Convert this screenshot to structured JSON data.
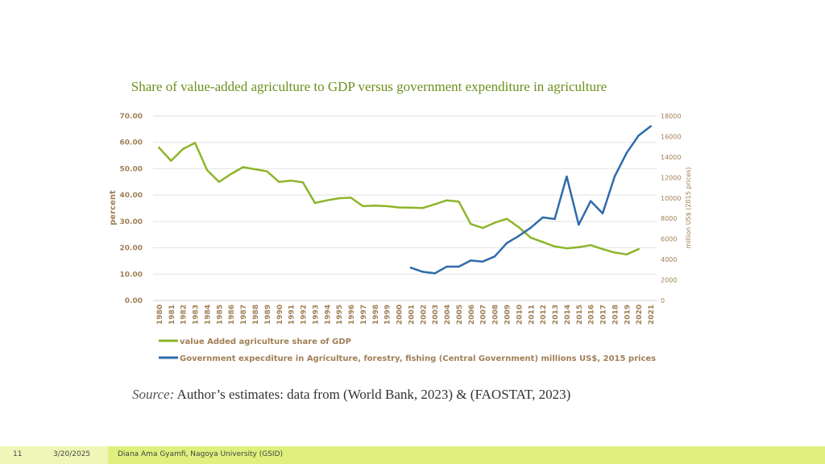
{
  "slide": {
    "title": "Share of value-added agriculture to GDP versus government expenditure in agriculture",
    "source_label": "Source:",
    "source_text": " Author’s estimates: data from (World Bank, 2023) & (FAOSTAT, 2023)",
    "footer": {
      "page_number": "11",
      "date": "3/20/2025",
      "author": "Diana Ama Gyamfi, Nagoya University (GSID)"
    }
  },
  "chart_data": {
    "type": "line",
    "title": "Share of value-added agriculture to GDP versus government expenditure in agriculture",
    "x": [
      "1980",
      "1981",
      "1982",
      "1983",
      "1984",
      "1985",
      "1986",
      "1987",
      "1988",
      "1989",
      "1990",
      "1991",
      "1992",
      "1993",
      "1994",
      "1995",
      "1996",
      "1997",
      "1998",
      "1999",
      "2000",
      "2001",
      "2002",
      "2003",
      "2004",
      "2005",
      "2006",
      "2007",
      "2008",
      "2009",
      "2010",
      "2011",
      "2012",
      "2013",
      "2014",
      "2015",
      "2016",
      "2017",
      "2018",
      "2019",
      "2020",
      "2021"
    ],
    "ylabel": "percent",
    "y2label": "million US$ (2015 prices)",
    "ylim": [
      0,
      70
    ],
    "y2lim": [
      0,
      18000
    ],
    "yticks": [
      "0.00",
      "10.00",
      "20.00",
      "30.00",
      "40.00",
      "50.00",
      "60.00",
      "70.00"
    ],
    "y2ticks": [
      "0",
      "2000",
      "4000",
      "6000",
      "8000",
      "10000",
      "12000",
      "14000",
      "16000",
      "18000"
    ],
    "grid": true,
    "legend_position": "bottom",
    "series": [
      {
        "name": "value Added agriculture share of GDP",
        "axis": "left",
        "color": "#8db52a",
        "values": [
          58,
          53,
          57.5,
          59.8,
          49.5,
          45,
          48,
          50.6,
          49.8,
          49,
          45,
          45.5,
          44.8,
          37,
          38,
          38.8,
          39,
          35.8,
          36,
          35.8,
          35.3,
          35.2,
          35.1,
          36.5,
          38,
          37.5,
          29,
          27.5,
          29.5,
          31,
          27.8,
          23.8,
          22.2,
          20.5,
          19.8,
          20.2,
          21,
          19.5,
          18.2,
          17.5,
          19.5,
          null
        ]
      },
      {
        "name": "Government expecditure in Agriculture, forestry, fishing (Central Government) millions US$, 2015 prices",
        "axis": "right",
        "color": "#2e6bab",
        "values": [
          null,
          null,
          null,
          null,
          null,
          null,
          null,
          null,
          null,
          null,
          null,
          null,
          null,
          null,
          null,
          null,
          null,
          null,
          null,
          null,
          null,
          3200,
          2800,
          2650,
          3300,
          3300,
          3900,
          3800,
          4300,
          5600,
          6300,
          7100,
          8100,
          7950,
          12100,
          7400,
          9700,
          8500,
          12100,
          14400,
          16100,
          17000
        ]
      }
    ]
  }
}
